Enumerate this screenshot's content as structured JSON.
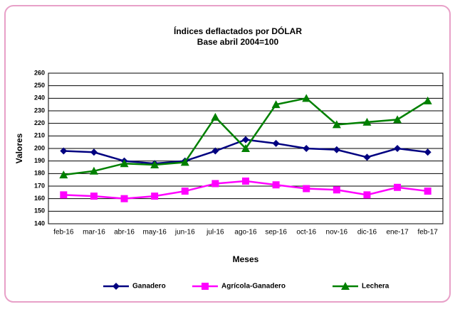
{
  "chart_data": {
    "type": "line",
    "title": "Índices deflactados por DÓLAR",
    "subtitle": "Base abril 2004=100",
    "x_label": "Meses",
    "y_label": "Valores",
    "categories": [
      "feb-16",
      "mar-16",
      "abr-16",
      "may-16",
      "jun-16",
      "jul-16",
      "ago-16",
      "sep-16",
      "oct-16",
      "nov-16",
      "dic-16",
      "ene-17",
      "feb-17"
    ],
    "series": [
      {
        "name": "Ganadero",
        "color": "#000080",
        "marker": "diamond",
        "values": [
          198,
          197,
          190,
          188,
          190,
          198,
          207,
          204,
          200,
          199,
          193,
          200,
          197
        ]
      },
      {
        "name": "Agrícola-Ganadero",
        "color": "#ff00ff",
        "marker": "square",
        "values": [
          163,
          162,
          160,
          162,
          166,
          172,
          174,
          171,
          168,
          167,
          163,
          169,
          166
        ]
      },
      {
        "name": "Lechera",
        "color": "#008000",
        "marker": "triangle",
        "values": [
          179,
          182,
          188,
          187,
          189,
          225,
          200,
          235,
          240,
          219,
          221,
          223,
          238
        ]
      }
    ],
    "ylim": [
      140,
      260
    ],
    "yticks": [
      140,
      150,
      160,
      170,
      180,
      190,
      200,
      210,
      220,
      230,
      240,
      250,
      260
    ],
    "grid": true,
    "legend": "bottom"
  }
}
